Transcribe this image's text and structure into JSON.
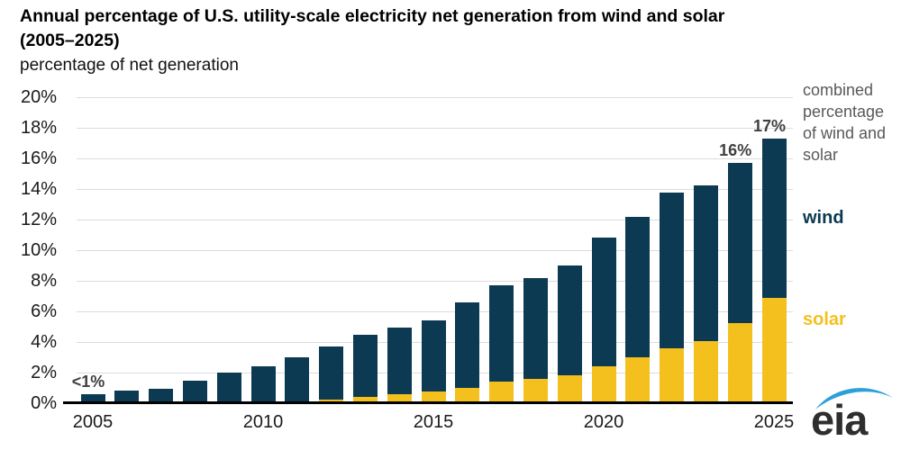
{
  "header": {
    "title_line1": "Annual percentage of U.S. utility-scale electricity net generation from wind and solar",
    "title_line2": "(2005–2025)",
    "subtitle": "percentage of net generation"
  },
  "legend": {
    "combined": "combined percentage of wind and solar",
    "wind": "wind",
    "solar": "solar"
  },
  "branding": {
    "logo_text": "eia"
  },
  "colors": {
    "wind": "#0b3a52",
    "solar": "#f4c01e",
    "legend_gray": "#58595b",
    "annotation_gray": "#404040",
    "gridline": "#dcdcdc",
    "axis": "#000000",
    "logo_blue": "#2d9fd9"
  },
  "chart_data": {
    "type": "bar",
    "stacked": true,
    "title": "Annual percentage of U.S. utility-scale electricity net generation from wind and solar (2005–2025)",
    "ylabel": "percentage of net generation",
    "categories": [
      "2005",
      "2006",
      "2007",
      "2008",
      "2009",
      "2010",
      "2011",
      "2012",
      "2013",
      "2014",
      "2015",
      "2016",
      "2017",
      "2018",
      "2019",
      "2020",
      "2021",
      "2022",
      "2023",
      "2024",
      "2025"
    ],
    "series": [
      {
        "name": "solar",
        "color": "#f4c01e",
        "values": [
          0,
          0,
          0,
          0,
          0,
          0,
          0,
          0.1,
          0.3,
          0.45,
          0.65,
          0.9,
          1.3,
          1.45,
          1.7,
          2.3,
          2.9,
          3.45,
          3.95,
          5.1,
          6.75
        ]
      },
      {
        "name": "wind",
        "color": "#0b3a52",
        "values": [
          0.45,
          0.7,
          0.85,
          1.35,
          1.9,
          2.3,
          2.9,
          3.5,
          4.05,
          4.4,
          4.65,
          5.55,
          6.3,
          6.6,
          7.2,
          8.4,
          9.15,
          10.2,
          10.15,
          10.5,
          10.45
        ]
      }
    ],
    "totals": [
      0.45,
      0.7,
      0.85,
      1.35,
      1.9,
      2.3,
      2.9,
      3.6,
      4.35,
      4.85,
      5.3,
      6.45,
      7.6,
      8.05,
      8.9,
      10.7,
      12.05,
      13.65,
      14.1,
      15.6,
      17.2
    ],
    "x_tick_labels": [
      "2005",
      "2010",
      "2015",
      "2020",
      "2025"
    ],
    "y_tick_labels": [
      "0%",
      "2%",
      "4%",
      "6%",
      "8%",
      "10%",
      "12%",
      "14%",
      "16%",
      "18%",
      "20%"
    ],
    "ylim": [
      0,
      20
    ],
    "y_tick_step": 2,
    "grid": "horizontal",
    "legend_position": "right",
    "annotations": [
      {
        "category": "2005",
        "text": "<1%"
      },
      {
        "category": "2024",
        "text": "16%"
      },
      {
        "category": "2025",
        "text": "17%"
      }
    ]
  }
}
